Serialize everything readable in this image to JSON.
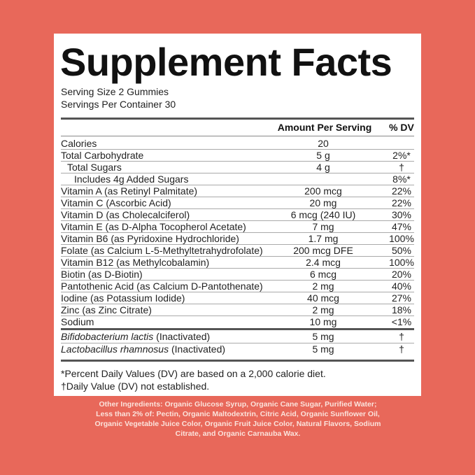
{
  "label": {
    "title": "Supplement Facts",
    "serving_size": "Serving Size 2 Gummies",
    "servings_per_container": "Servings Per Container 30",
    "header": {
      "amount": "Amount Per Serving",
      "dv": "% DV"
    },
    "rows": [
      {
        "name": "Calories",
        "amount": "20"
      },
      {
        "name": "Total Carbohydrate",
        "amount": "5 g",
        "dv": "2%*"
      },
      {
        "name": "Total Sugars",
        "amount": "4 g",
        "dv": "†"
      },
      {
        "name": "Includes 4g Added Sugars",
        "dv": "8%*"
      },
      {
        "name": "Vitamin A (as Retinyl Palmitate)",
        "amount": "200 mcg",
        "dv": "22%"
      },
      {
        "name": "Vitamin C (Ascorbic Acid)",
        "amount": "20 mg",
        "dv": "22%"
      },
      {
        "name": "Vitamin D (as Cholecalciferol)",
        "amount": "6 mcg (240 IU)",
        "dv": "30%"
      },
      {
        "name": "Vitamin E (as D-Alpha Tocopherol Acetate)",
        "amount": "7 mg",
        "dv": "47%"
      },
      {
        "name": "Vitamin B6 (as Pyridoxine Hydrochloride)",
        "amount": "1.7 mg",
        "dv": "100%"
      },
      {
        "name": "Folate (as Calcium L-5-Methyltetrahydrofolate)",
        "amount": "200 mcg DFE",
        "dv": "50%"
      },
      {
        "name": "Vitamin B12 (as Methylcobalamin)",
        "amount": "2.4 mcg",
        "dv": "100%"
      },
      {
        "name": "Biotin (as D-Biotin)",
        "amount": "6 mcg",
        "dv": "20%"
      },
      {
        "name": "Pantothenic Acid (as Calcium D-Pantothenate)",
        "amount": "2 mg",
        "dv": "40%"
      },
      {
        "name": "Iodine (as Potassium Iodide)",
        "amount": "40 mcg",
        "dv": "27%"
      },
      {
        "name": "Zinc (as Zinc Citrate)",
        "amount": "2 mg",
        "dv": "18%"
      },
      {
        "name": "Sodium",
        "amount": "10 mg",
        "dv": "<1%"
      }
    ],
    "probiotics": [
      {
        "species": "Bifidobacterium lactis",
        "note": "(Inactivated)",
        "amount": "5 mg",
        "dv": "†"
      },
      {
        "species": "Lactobacillus rhamnosus",
        "note": "(Inactivated)",
        "amount": "5 mg",
        "dv": "†"
      }
    ],
    "footnotes": [
      "*Percent Daily Values (DV) are based on a 2,000 calorie diet.",
      "†Daily Value (DV) not established."
    ]
  },
  "other_ingredients": [
    "Other Ingredients: Organic Glucose Syrup, Organic Cane Sugar, Purified Water;",
    "Less than 2% of: Pectin, Organic Maltodextrin, Citric Acid, Organic Sunflower Oil,",
    "Organic Vegetable Juice Color, Organic Fruit Juice Color, Natural Flavors, Sodium",
    "Citrate, and Organic Carnauba Wax."
  ]
}
